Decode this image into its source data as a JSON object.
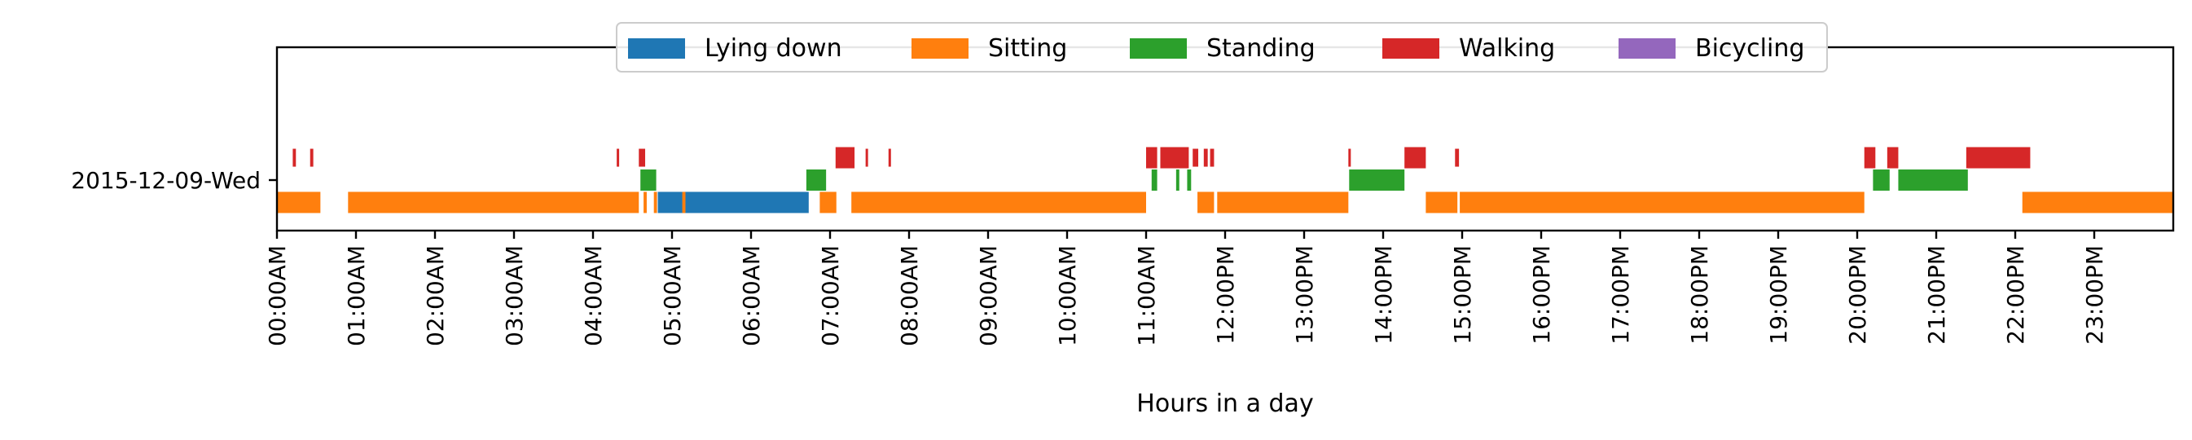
{
  "chart_data": {
    "type": "timeline",
    "title": "",
    "xlabel": "Hours in a day",
    "ylabel": "",
    "xlim": [
      0,
      24
    ],
    "x_tick_labels": [
      "00:00AM",
      "01:00AM",
      "02:00AM",
      "03:00AM",
      "04:00AM",
      "05:00AM",
      "06:00AM",
      "07:00AM",
      "08:00AM",
      "09:00AM",
      "10:00AM",
      "11:00AM",
      "12:00PM",
      "13:00PM",
      "14:00PM",
      "15:00PM",
      "16:00PM",
      "17:00PM",
      "18:00PM",
      "19:00PM",
      "20:00PM",
      "21:00PM",
      "22:00PM",
      "23:00PM"
    ],
    "y_categories": [
      "2015-12-09-Wed"
    ],
    "legend": {
      "placement": "top-center",
      "entries": [
        {
          "name": "Lying down",
          "color": "#1f77b4"
        },
        {
          "name": "Sitting",
          "color": "#ff7f0e"
        },
        {
          "name": "Standing",
          "color": "#2ca02c"
        },
        {
          "name": "Walking",
          "color": "#d62728"
        },
        {
          "name": "Bicycling",
          "color": "#9467bd"
        }
      ]
    },
    "series": [
      {
        "name": "Lying down",
        "level": -0.15,
        "intervals": [
          [
            4.82,
            6.73
          ]
        ]
      },
      {
        "name": "Sitting",
        "level": -0.15,
        "intervals": [
          [
            0.0,
            0.55
          ],
          [
            0.9,
            4.58
          ],
          [
            4.64,
            4.68
          ],
          [
            4.77,
            4.81
          ],
          [
            5.13,
            5.17
          ],
          [
            6.87,
            7.08
          ],
          [
            7.27,
            11.0
          ],
          [
            11.65,
            11.86
          ],
          [
            11.9,
            13.56
          ],
          [
            14.54,
            14.94
          ],
          [
            14.97,
            20.09
          ],
          [
            22.09,
            24.0
          ]
        ]
      },
      {
        "name": "Standing",
        "level": 0.0,
        "intervals": [
          [
            4.6,
            4.8
          ],
          [
            6.7,
            6.95
          ],
          [
            11.07,
            11.14
          ],
          [
            11.38,
            11.42
          ],
          [
            11.52,
            11.57
          ],
          [
            13.57,
            14.27
          ],
          [
            20.2,
            20.41
          ],
          [
            20.52,
            21.4
          ]
        ]
      },
      {
        "name": "Walking",
        "level": 0.15,
        "intervals": [
          [
            0.2,
            0.24
          ],
          [
            0.42,
            0.46
          ],
          [
            4.3,
            4.33
          ],
          [
            4.58,
            4.66
          ],
          [
            7.07,
            7.31
          ],
          [
            7.45,
            7.48
          ],
          [
            7.74,
            7.77
          ],
          [
            11.0,
            11.14
          ],
          [
            11.18,
            11.54
          ],
          [
            11.59,
            11.66
          ],
          [
            11.73,
            11.78
          ],
          [
            11.81,
            11.86
          ],
          [
            13.56,
            13.59
          ],
          [
            14.27,
            14.54
          ],
          [
            14.91,
            14.96
          ],
          [
            20.09,
            20.23
          ],
          [
            20.38,
            20.52
          ],
          [
            21.38,
            22.19
          ]
        ]
      },
      {
        "name": "Bicycling",
        "level": 0.3,
        "intervals": []
      }
    ]
  }
}
